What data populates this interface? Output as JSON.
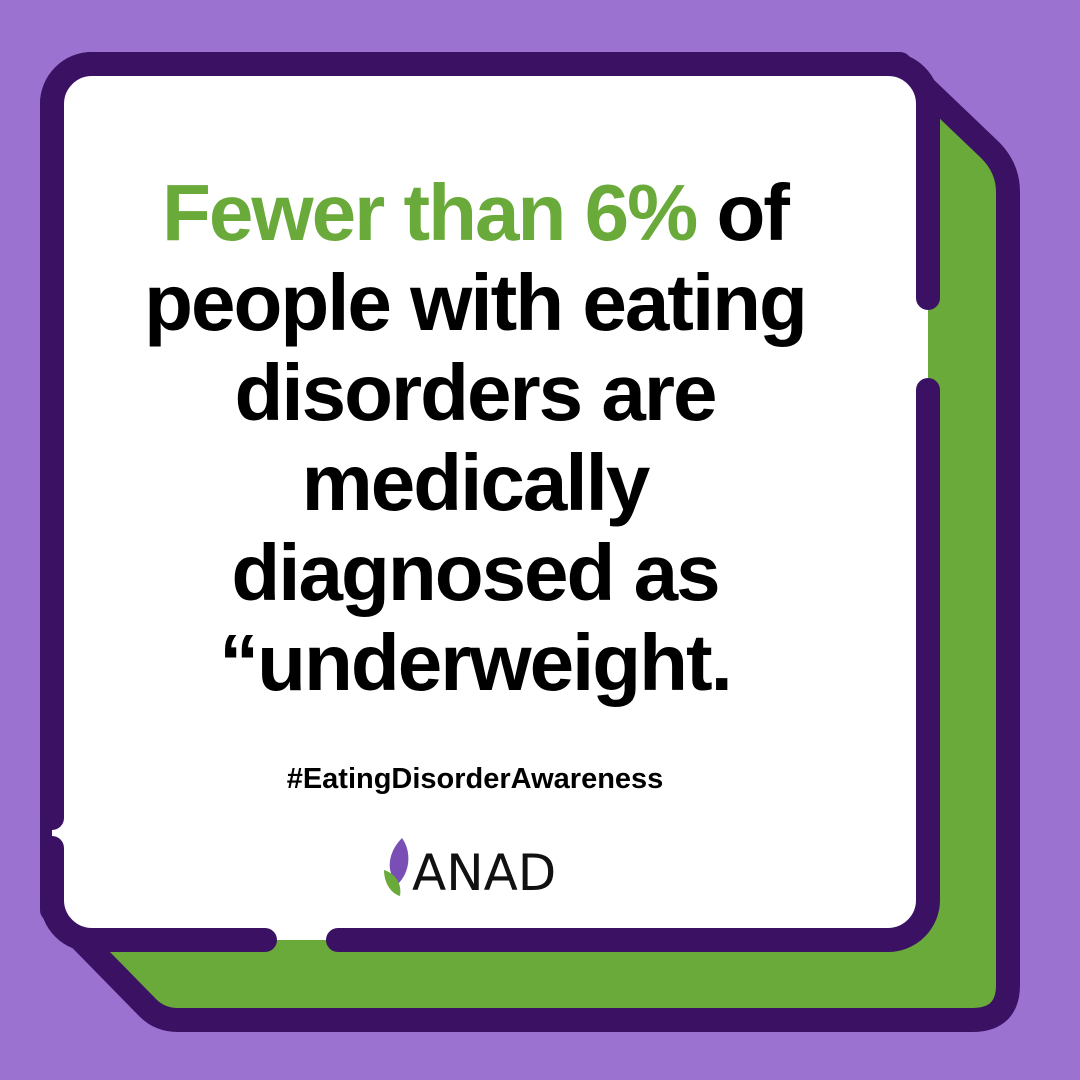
{
  "headline": {
    "highlight": "Fewer than 6%",
    "lines": [
      "of",
      "people with eating",
      "disorders are",
      "medically",
      "diagnosed as",
      "“underweight."
    ]
  },
  "hashtag": "#EatingDisorderAwareness",
  "logo": {
    "text": "ANAD"
  }
}
